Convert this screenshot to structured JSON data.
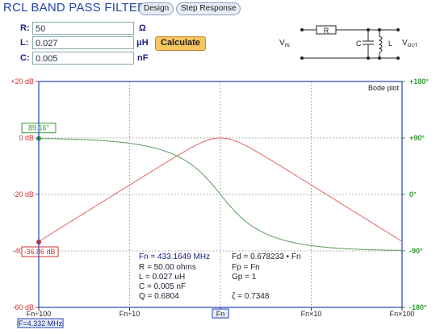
{
  "header": {
    "title": "RCL BAND PASS FILTER",
    "tabs": [
      "Design",
      "Step Response"
    ]
  },
  "inputs": {
    "r": {
      "label": "R:",
      "value": "50",
      "unit": "Ω"
    },
    "l": {
      "label": "L:",
      "value": "0.027",
      "unit": "μH"
    },
    "c": {
      "label": "C:",
      "value": "0.005",
      "unit": "nF"
    }
  },
  "calculate_label": "Calculate",
  "schematic": {
    "r_label": "R",
    "c_label": "C",
    "l_label": "L",
    "vin_main": "V",
    "vin_sub": "IN",
    "vout_main": "V",
    "vout_sub": "OUT"
  },
  "plot": {
    "title": "Bode plot",
    "left_ticks": [
      "+20 dB",
      "0 dB",
      "-20 dB",
      "-40 dB",
      "-60 dB"
    ],
    "right_ticks": [
      "+180°",
      "+90°",
      "0°",
      "-90°",
      "-180°"
    ],
    "x_ticks": [
      "Fn÷100",
      "Fn÷10",
      "Fn",
      "Fn×10",
      "Fn×100"
    ],
    "cursor_phase": "89.16°",
    "cursor_gain": "-36.86 dB",
    "cursor_freq": "F=4.332 MHz",
    "colors": {
      "gain": "#e06666",
      "phase": "#5a9a5a",
      "frame": "#2244bb"
    }
  },
  "info": {
    "fn": "Fn   =  433.1649 MHz",
    "r": "R    =  50.00 ohms",
    "l": "L    =  0.027 uH",
    "c": "C    =  0.005 nF",
    "q": "Q    =  0.6804",
    "fd": "Fd   =  0.678233 • Fn",
    "fp": "Fp   =  Fn",
    "gp": "Gp  =  1",
    "zeta": "ζ    =  0.7348"
  },
  "chart_data": {
    "type": "line",
    "title": "Bode plot",
    "x": [
      "Fn÷100",
      "Fn÷10",
      "Fn",
      "Fn×10",
      "Fn×100"
    ],
    "x_scale": "log",
    "series": [
      {
        "name": "",
        "axis": "left",
        "unit": "dB",
        "values": [
          -36.86,
          -17.5,
          0,
          -17.5,
          -36.86
        ]
      },
      {
        "name": "",
        "axis": "right",
        "unit": "deg",
        "values": [
          89.16,
          82,
          0,
          -82,
          -89.16
        ]
      }
    ],
    "ylim_left": [
      -60,
      20
    ],
    "ylim_right": [
      -180,
      180
    ],
    "grid": true
  }
}
